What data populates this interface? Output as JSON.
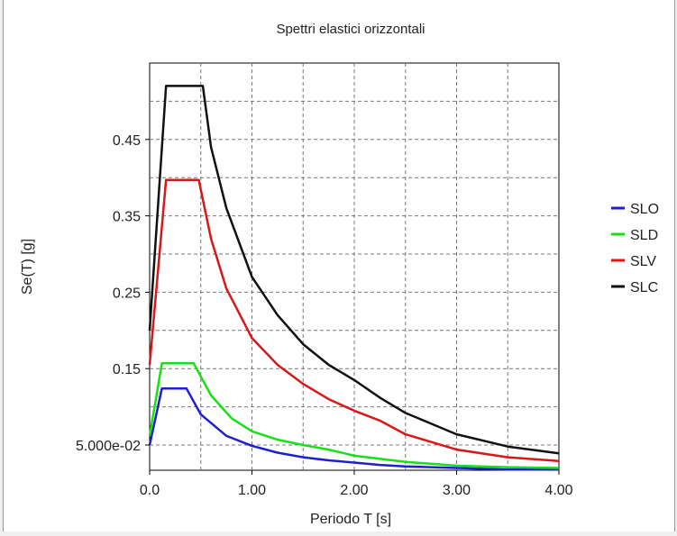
{
  "chart_data": {
    "type": "line",
    "title": "Spettri elastici orizzontali",
    "xlabel": "Periodo T [s]",
    "ylabel": "Se(T) [g]",
    "xlim": [
      0,
      4.0
    ],
    "ylim": [
      0.017,
      0.55
    ],
    "x_ticks": [
      0,
      1,
      2,
      3,
      4
    ],
    "x_tick_labels": [
      "0.0",
      "1.00",
      "2.00",
      "3.00",
      "4.00"
    ],
    "y_ticks": [
      0.05,
      0.15,
      0.25,
      0.35,
      0.45
    ],
    "y_tick_labels": [
      "5.000e-02",
      "0.15",
      "0.25",
      "0.35",
      "0.45"
    ],
    "x_grid": [
      0,
      0.5,
      1,
      1.5,
      2,
      2.5,
      3,
      3.5,
      4
    ],
    "y_grid": [
      0.05,
      0.1,
      0.15,
      0.2,
      0.25,
      0.3,
      0.35,
      0.4,
      0.45,
      0.5
    ],
    "grid": true,
    "legend_position": "right",
    "series": [
      {
        "name": "SLO",
        "color": "#1f1fd0",
        "x": [
          0,
          0.12,
          0.36,
          0.5,
          0.75,
          1.0,
          1.25,
          1.5,
          1.75,
          2.0,
          2.25,
          2.5,
          3.0,
          3.5,
          4.0
        ],
        "y": [
          0.05,
          0.124,
          0.124,
          0.09,
          0.062,
          0.049,
          0.04,
          0.034,
          0.03,
          0.027,
          0.024,
          0.022,
          0.02,
          0.018,
          0.018
        ]
      },
      {
        "name": "SLD",
        "color": "#18e018",
        "x": [
          0,
          0.12,
          0.43,
          0.6,
          0.8,
          1.0,
          1.25,
          1.5,
          1.75,
          2.0,
          2.5,
          3.0,
          3.5,
          4.0
        ],
        "y": [
          0.062,
          0.157,
          0.157,
          0.115,
          0.085,
          0.068,
          0.057,
          0.05,
          0.044,
          0.036,
          0.028,
          0.023,
          0.021,
          0.02
        ]
      },
      {
        "name": "SLV",
        "color": "#d61818",
        "x": [
          0,
          0.16,
          0.48,
          0.6,
          0.75,
          1.0,
          1.25,
          1.5,
          1.75,
          2.0,
          2.25,
          2.5,
          3.0,
          3.5,
          4.0
        ],
        "y": [
          0.155,
          0.397,
          0.397,
          0.32,
          0.255,
          0.19,
          0.155,
          0.13,
          0.11,
          0.095,
          0.082,
          0.064,
          0.044,
          0.034,
          0.029
        ]
      },
      {
        "name": "SLC",
        "color": "#111111",
        "x": [
          0,
          0.16,
          0.52,
          0.6,
          0.75,
          1.0,
          1.25,
          1.5,
          1.75,
          2.0,
          2.25,
          2.5,
          3.0,
          3.5,
          4.0
        ],
        "y": [
          0.2,
          0.52,
          0.52,
          0.44,
          0.36,
          0.27,
          0.22,
          0.182,
          0.155,
          0.135,
          0.112,
          0.092,
          0.064,
          0.048,
          0.039
        ]
      }
    ]
  }
}
